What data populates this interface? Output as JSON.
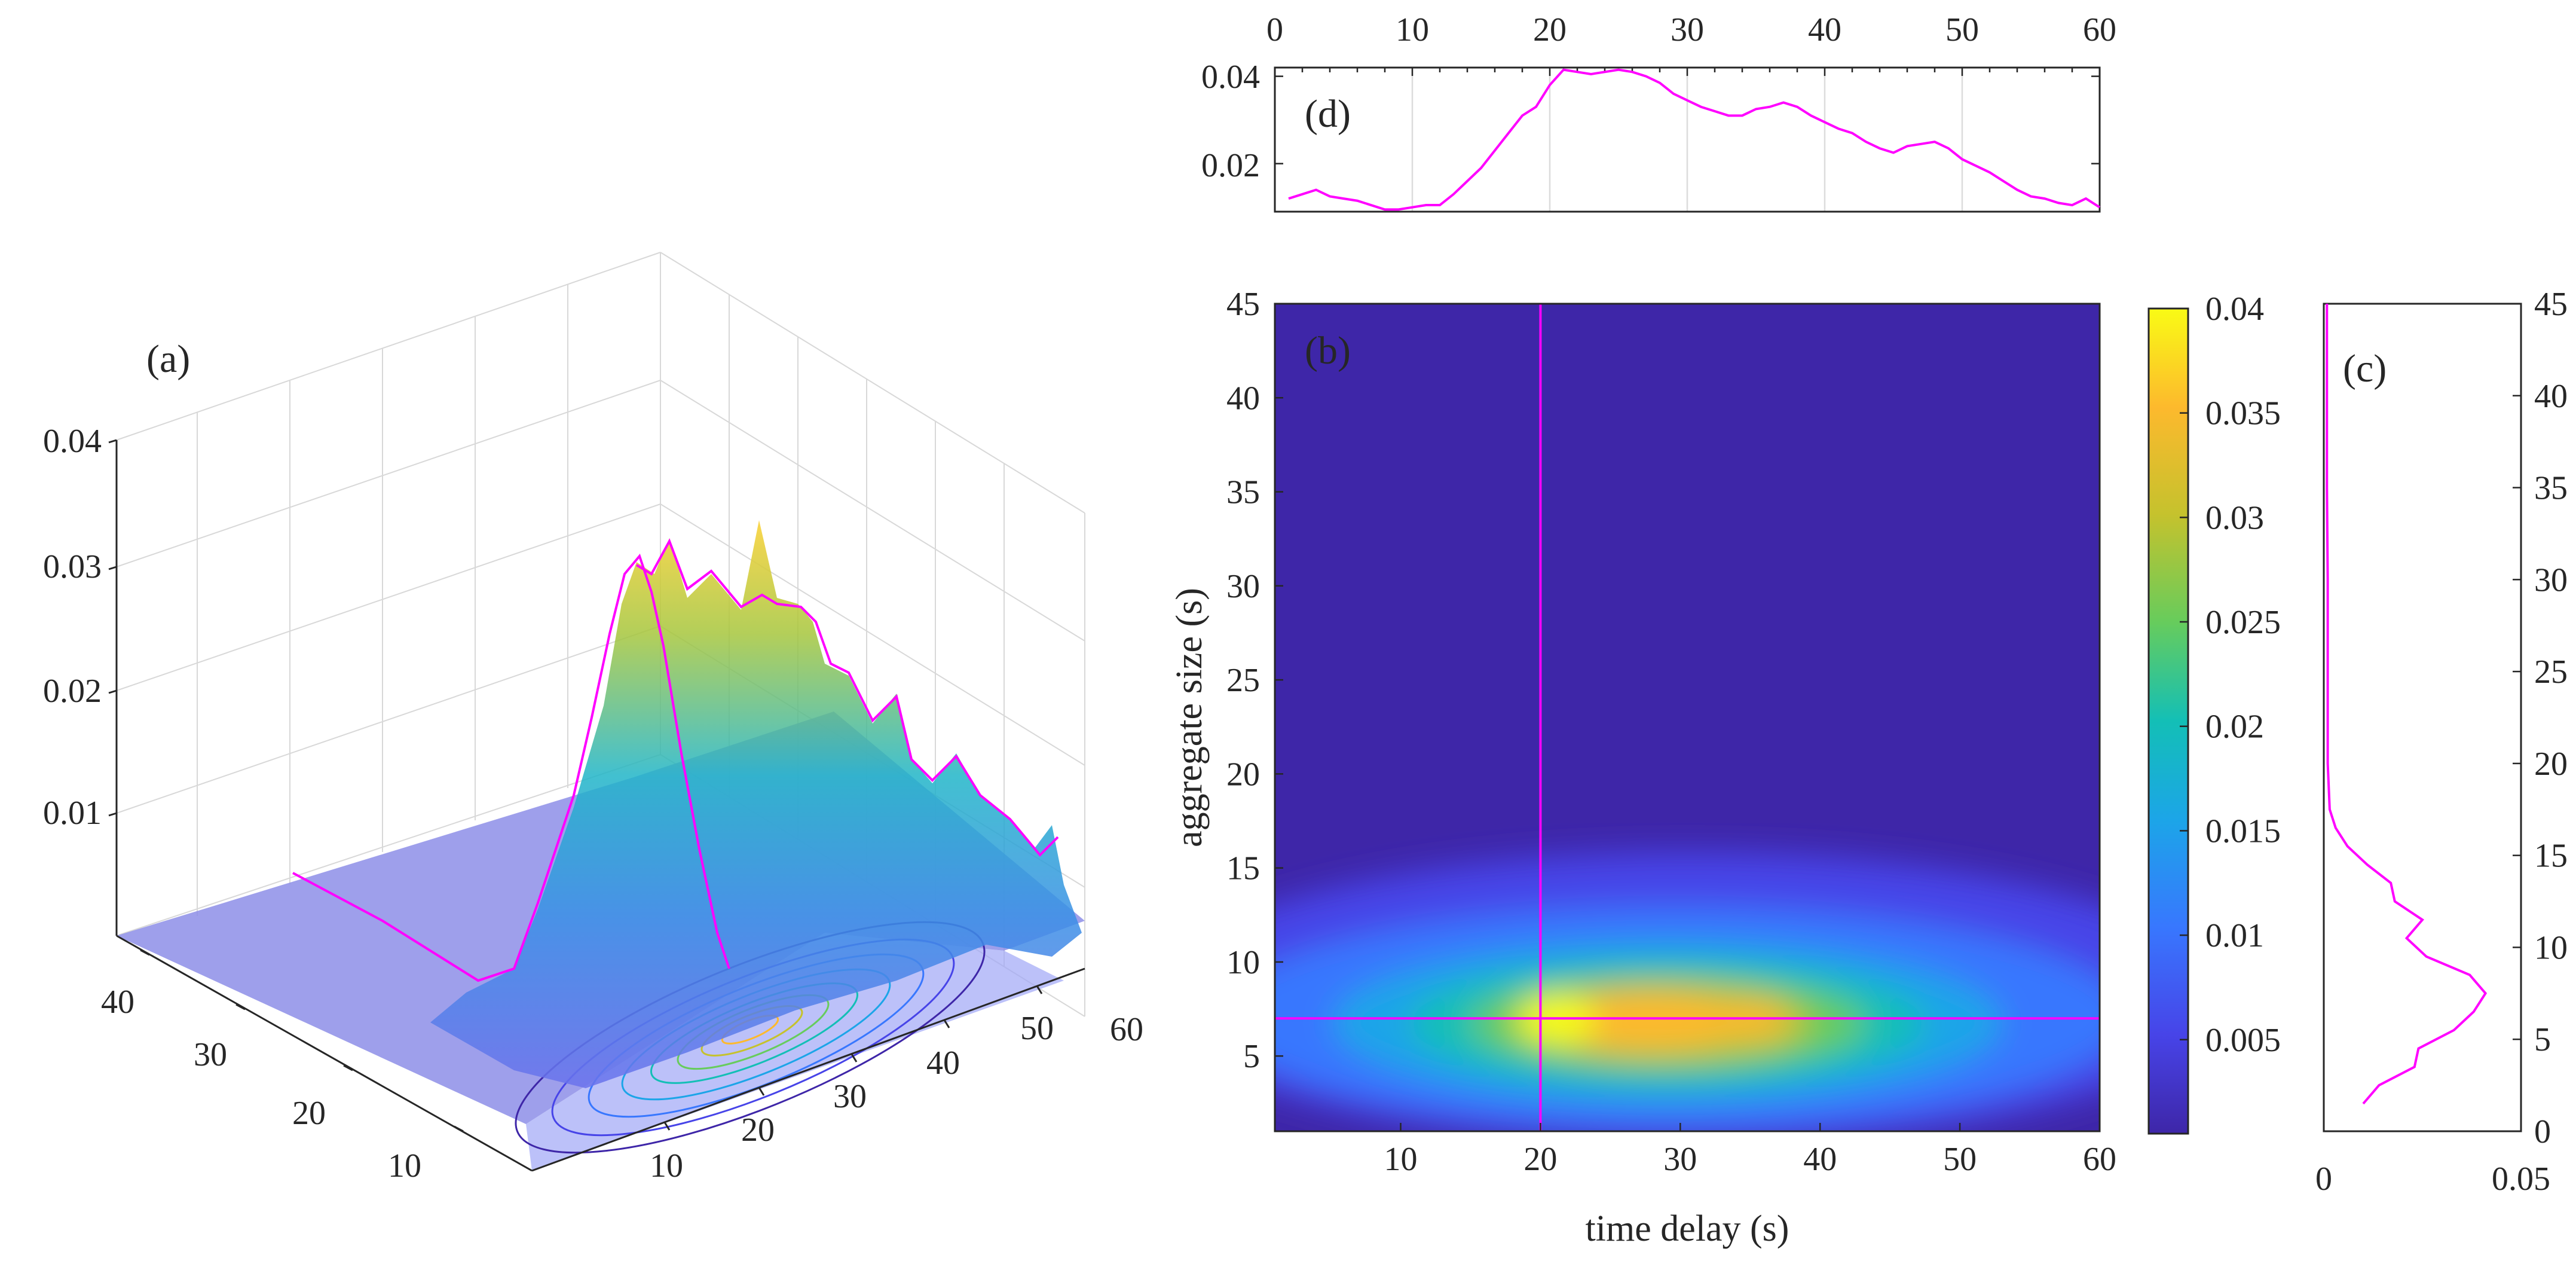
{
  "colors": {
    "magenta": "#ff00ff",
    "parula": [
      "#3e26a8",
      "#4744e8",
      "#3877fe",
      "#1ca5e8",
      "#13bfb6",
      "#67cc5c",
      "#c5c22d",
      "#fdb92d",
      "#f9fb15"
    ]
  },
  "chart_data": [
    {
      "id": "a",
      "type": "surface3d",
      "panel_label": "(a)",
      "zticks": [
        "0.01",
        "0.02",
        "0.03",
        "0.04"
      ],
      "size_ticks": [
        "10",
        "20",
        "30",
        "40"
      ],
      "delay_ticks": [
        "10",
        "20",
        "30",
        "40",
        "50",
        "60"
      ],
      "zlim": [
        0,
        0.04
      ],
      "slice_delay_s": 20,
      "slice_size_s": 7,
      "peak_value": 0.041
    },
    {
      "id": "b",
      "type": "heatmap",
      "panel_label": "(b)",
      "xlabel": "time delay (s)",
      "ylabel": "aggregate size  (s)",
      "xticks": [
        "10",
        "20",
        "30",
        "40",
        "50",
        "60"
      ],
      "yticks": [
        "5",
        "10",
        "15",
        "20",
        "25",
        "30",
        "35",
        "40",
        "45"
      ],
      "xlim": [
        1,
        60
      ],
      "ylim": [
        1,
        45
      ],
      "peak": {
        "x": 22,
        "y": 7.5,
        "value": 0.04
      },
      "secondary_peak": {
        "x": 33,
        "y": 8,
        "value": 0.03
      },
      "crosshair": {
        "x": 20,
        "y": 7
      }
    },
    {
      "id": "colorbar",
      "type": "colorbar",
      "ticks": [
        "0.005",
        "0.01",
        "0.015",
        "0.02",
        "0.025",
        "0.03",
        "0.035",
        "0.04"
      ],
      "tick_values": [
        0.005,
        0.01,
        0.015,
        0.02,
        0.025,
        0.03,
        0.035,
        0.04
      ],
      "clim": [
        0.0005,
        0.04
      ]
    },
    {
      "id": "c",
      "type": "line",
      "panel_label": "(c)",
      "description_axis": "aggregate size vs value at time delay 20 s",
      "xticks": [
        "0",
        "0.05"
      ],
      "yticks": [
        "0",
        "5",
        "10",
        "15",
        "20",
        "25",
        "30",
        "35",
        "40",
        "45"
      ],
      "xlim": [
        0,
        0.05
      ],
      "ylim": [
        0,
        45
      ],
      "size": [
        1.5,
        2.5,
        3.5,
        4.5,
        5.5,
        6.5,
        7.5,
        8.5,
        9.5,
        10.5,
        11.5,
        12.5,
        13.5,
        14.5,
        15.5,
        16.5,
        17.5,
        20,
        25,
        30,
        35,
        40,
        45
      ],
      "values": [
        0.01,
        0.014,
        0.023,
        0.024,
        0.033,
        0.038,
        0.041,
        0.037,
        0.026,
        0.021,
        0.025,
        0.018,
        0.017,
        0.011,
        0.006,
        0.003,
        0.0015,
        0.001,
        0.001,
        0.001,
        0.0008,
        0.0008,
        0.0008
      ]
    },
    {
      "id": "d",
      "type": "line",
      "panel_label": "(d)",
      "description_axis": "time delay vs value at aggregate size 7 s",
      "xticks": [
        "0",
        "10",
        "20",
        "30",
        "40",
        "50",
        "60"
      ],
      "yticks": [
        "0.02",
        "0.04"
      ],
      "xlim": [
        0,
        60
      ],
      "ylim": [
        0.009,
        0.042
      ],
      "x": [
        1,
        2,
        3,
        4,
        5,
        6,
        7,
        8,
        9,
        10,
        11,
        12,
        13,
        14,
        15,
        16,
        17,
        18,
        19,
        20,
        21,
        22,
        23,
        24,
        25,
        26,
        27,
        28,
        29,
        30,
        31,
        32,
        33,
        34,
        35,
        36,
        37,
        38,
        39,
        40,
        41,
        42,
        43,
        44,
        45,
        46,
        47,
        48,
        49,
        50,
        51,
        52,
        53,
        54,
        55,
        56,
        57,
        58,
        59,
        60
      ],
      "y": [
        0.012,
        0.013,
        0.014,
        0.0125,
        0.012,
        0.0115,
        0.0105,
        0.0095,
        0.0095,
        0.01,
        0.0105,
        0.0105,
        0.013,
        0.016,
        0.019,
        0.023,
        0.027,
        0.031,
        0.033,
        0.038,
        0.0415,
        0.041,
        0.0405,
        0.041,
        0.0415,
        0.041,
        0.04,
        0.0385,
        0.036,
        0.0345,
        0.033,
        0.032,
        0.031,
        0.031,
        0.0325,
        0.033,
        0.034,
        0.033,
        0.031,
        0.0295,
        0.028,
        0.027,
        0.025,
        0.0235,
        0.0225,
        0.024,
        0.0245,
        0.025,
        0.0235,
        0.021,
        0.0195,
        0.018,
        0.016,
        0.014,
        0.0125,
        0.012,
        0.011,
        0.0105,
        0.012,
        0.01
      ]
    }
  ]
}
